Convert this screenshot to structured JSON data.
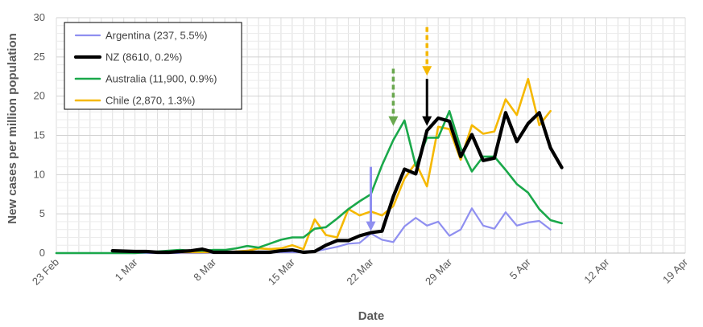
{
  "chart_data": {
    "type": "line",
    "title": "",
    "xlabel": "Date",
    "ylabel": "New cases per million population",
    "x_tick_labels": [
      "23 Feb",
      "1 Mar",
      "8 Mar",
      "15 Mar",
      "22 Mar",
      "29 Mar",
      "5 Apr",
      "12 Apr",
      "19 Apr"
    ],
    "x_range": [
      "2020-02-23",
      "2020-04-19"
    ],
    "ylim": [
      0,
      30
    ],
    "y_ticks": [
      "0",
      "5",
      "10",
      "15",
      "20",
      "25",
      "30"
    ],
    "grid": true,
    "legend_position": "top-left",
    "series": [
      {
        "name": "Argentina (237, 5.5%)",
        "color": "#8f8ff0",
        "points": [
          [
            "2020-02-23",
            0
          ],
          [
            "2020-03-01",
            0
          ],
          [
            "2020-03-07",
            0
          ],
          [
            "2020-03-12",
            0.1
          ],
          [
            "2020-03-15",
            0.1
          ],
          [
            "2020-03-16",
            0.1
          ],
          [
            "2020-03-17",
            0.2
          ],
          [
            "2020-03-18",
            0.5
          ],
          [
            "2020-03-19",
            0.8
          ],
          [
            "2020-03-20",
            1.2
          ],
          [
            "2020-03-21",
            1.3
          ],
          [
            "2020-03-22",
            2.5
          ],
          [
            "2020-03-23",
            1.7
          ],
          [
            "2020-03-24",
            1.4
          ],
          [
            "2020-03-25",
            3.4
          ],
          [
            "2020-03-26",
            4.5
          ],
          [
            "2020-03-27",
            3.5
          ],
          [
            "2020-03-28",
            4.0
          ],
          [
            "2020-03-29",
            2.2
          ],
          [
            "2020-03-30",
            3.0
          ],
          [
            "2020-03-31",
            5.7
          ],
          [
            "2020-04-01",
            3.5
          ],
          [
            "2020-04-02",
            3.1
          ],
          [
            "2020-04-03",
            5.2
          ],
          [
            "2020-04-04",
            3.5
          ],
          [
            "2020-04-05",
            3.9
          ],
          [
            "2020-04-06",
            4.1
          ],
          [
            "2020-04-07",
            3.0
          ]
        ]
      },
      {
        "name": "NZ (8610, 0.2%)",
        "color": "#000000",
        "points": [
          [
            "2020-02-28",
            0.3
          ],
          [
            "2020-03-01",
            0.2
          ],
          [
            "2020-03-02",
            0.2
          ],
          [
            "2020-03-03",
            0.1
          ],
          [
            "2020-03-04",
            0.1
          ],
          [
            "2020-03-05",
            0.2
          ],
          [
            "2020-03-06",
            0.3
          ],
          [
            "2020-03-07",
            0.5
          ],
          [
            "2020-03-08",
            0.1
          ],
          [
            "2020-03-09",
            0.1
          ],
          [
            "2020-03-10",
            0.1
          ],
          [
            "2020-03-11",
            0.1
          ],
          [
            "2020-03-12",
            0.1
          ],
          [
            "2020-03-13",
            0.1
          ],
          [
            "2020-03-14",
            0.3
          ],
          [
            "2020-03-15",
            0.4
          ],
          [
            "2020-03-16",
            0.1
          ],
          [
            "2020-03-17",
            0.2
          ],
          [
            "2020-03-18",
            1.0
          ],
          [
            "2020-03-19",
            1.6
          ],
          [
            "2020-03-20",
            1.6
          ],
          [
            "2020-03-21",
            2.2
          ],
          [
            "2020-03-22",
            2.6
          ],
          [
            "2020-03-23",
            2.8
          ],
          [
            "2020-03-24",
            7.2
          ],
          [
            "2020-03-25",
            10.7
          ],
          [
            "2020-03-26",
            10.1
          ],
          [
            "2020-03-27",
            15.6
          ],
          [
            "2020-03-28",
            17.2
          ],
          [
            "2020-03-29",
            16.8
          ],
          [
            "2020-03-30",
            12.3
          ],
          [
            "2020-03-31",
            15.1
          ],
          [
            "2020-04-01",
            11.8
          ],
          [
            "2020-04-02",
            12.1
          ],
          [
            "2020-04-03",
            17.9
          ],
          [
            "2020-04-04",
            14.2
          ],
          [
            "2020-04-05",
            16.5
          ],
          [
            "2020-04-06",
            17.9
          ],
          [
            "2020-04-07",
            13.4
          ],
          [
            "2020-04-08",
            10.9
          ]
        ]
      },
      {
        "name": "Australia (11,900, 0.9%)",
        "color": "#1aa84a",
        "points": [
          [
            "2020-02-23",
            0
          ],
          [
            "2020-03-01",
            0
          ],
          [
            "2020-03-02",
            0.1
          ],
          [
            "2020-03-03",
            0.2
          ],
          [
            "2020-03-04",
            0.3
          ],
          [
            "2020-03-05",
            0.4
          ],
          [
            "2020-03-06",
            0.3
          ],
          [
            "2020-03-07",
            0.3
          ],
          [
            "2020-03-08",
            0.4
          ],
          [
            "2020-03-09",
            0.4
          ],
          [
            "2020-03-10",
            0.6
          ],
          [
            "2020-03-11",
            0.9
          ],
          [
            "2020-03-12",
            0.7
          ],
          [
            "2020-03-13",
            1.2
          ],
          [
            "2020-03-14",
            1.7
          ],
          [
            "2020-03-15",
            2.0
          ],
          [
            "2020-03-16",
            2.0
          ],
          [
            "2020-03-17",
            3.1
          ],
          [
            "2020-03-18",
            3.3
          ],
          [
            "2020-03-19",
            4.4
          ],
          [
            "2020-03-20",
            5.6
          ],
          [
            "2020-03-21",
            6.6
          ],
          [
            "2020-03-22",
            7.5
          ],
          [
            "2020-03-23",
            11.2
          ],
          [
            "2020-03-24",
            14.4
          ],
          [
            "2020-03-25",
            16.9
          ],
          [
            "2020-03-26",
            11.1
          ],
          [
            "2020-03-27",
            14.7
          ],
          [
            "2020-03-28",
            14.7
          ],
          [
            "2020-03-29",
            18.1
          ],
          [
            "2020-03-30",
            13.4
          ],
          [
            "2020-03-31",
            10.4
          ],
          [
            "2020-04-01",
            12.3
          ],
          [
            "2020-04-02",
            12.3
          ],
          [
            "2020-04-03",
            10.6
          ],
          [
            "2020-04-04",
            8.8
          ],
          [
            "2020-04-05",
            7.7
          ],
          [
            "2020-04-06",
            5.6
          ],
          [
            "2020-04-07",
            4.2
          ],
          [
            "2020-04-08",
            3.8
          ]
        ]
      },
      {
        "name": "Chile (2,870, 1.3%)",
        "color": "#f5b800",
        "points": [
          [
            "2020-03-05",
            0.1
          ],
          [
            "2020-03-06",
            0.1
          ],
          [
            "2020-03-07",
            0.1
          ],
          [
            "2020-03-08",
            0.1
          ],
          [
            "2020-03-09",
            0.1
          ],
          [
            "2020-03-10",
            0.2
          ],
          [
            "2020-03-11",
            0.3
          ],
          [
            "2020-03-12",
            0.6
          ],
          [
            "2020-03-13",
            0.5
          ],
          [
            "2020-03-14",
            0.6
          ],
          [
            "2020-03-15",
            1.0
          ],
          [
            "2020-03-16",
            0.5
          ],
          [
            "2020-03-17",
            4.3
          ],
          [
            "2020-03-18",
            2.3
          ],
          [
            "2020-03-19",
            2.0
          ],
          [
            "2020-03-20",
            5.6
          ],
          [
            "2020-03-21",
            4.8
          ],
          [
            "2020-03-22",
            5.3
          ],
          [
            "2020-03-23",
            4.8
          ],
          [
            "2020-03-24",
            6.0
          ],
          [
            "2020-03-25",
            9.5
          ],
          [
            "2020-03-26",
            11.5
          ],
          [
            "2020-03-27",
            8.5
          ],
          [
            "2020-03-28",
            16.1
          ],
          [
            "2020-03-29",
            15.8
          ],
          [
            "2020-03-30",
            11.9
          ],
          [
            "2020-03-31",
            16.3
          ],
          [
            "2020-04-01",
            15.2
          ],
          [
            "2020-04-02",
            15.5
          ],
          [
            "2020-04-03",
            19.6
          ],
          [
            "2020-04-04",
            17.6
          ],
          [
            "2020-04-05",
            22.2
          ],
          [
            "2020-04-06",
            16.3
          ],
          [
            "2020-04-07",
            18.1
          ]
        ]
      }
    ],
    "annotations": [
      {
        "type": "arrow",
        "style": "solid",
        "color": "#8f8ff0",
        "x": "2020-03-22",
        "y_from": 11,
        "y_to": 2.8
      },
      {
        "type": "arrow",
        "style": "dashed",
        "color": "#6aa84f",
        "x": "2020-03-24",
        "y_from": 23.5,
        "y_to": 16.2
      },
      {
        "type": "arrow",
        "style": "dashed",
        "color": "#f5b800",
        "x": "2020-03-27",
        "y_from": 28.8,
        "y_to": 22.6
      },
      {
        "type": "arrow",
        "style": "solid",
        "color": "#000000",
        "x": "2020-03-27",
        "y_from": 22.2,
        "y_to": 16.2
      }
    ]
  }
}
